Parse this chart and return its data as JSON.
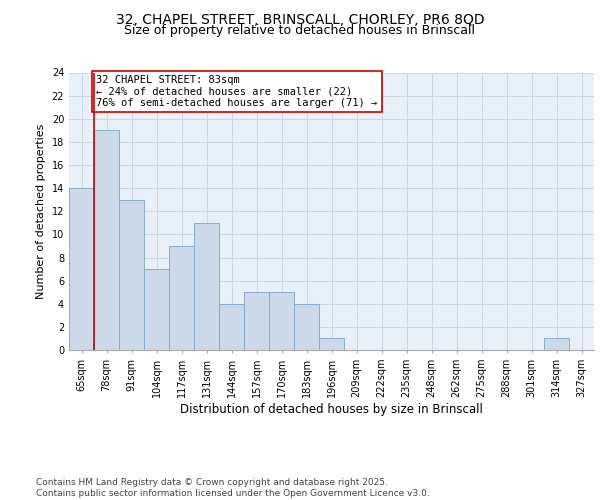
{
  "title1": "32, CHAPEL STREET, BRINSCALL, CHORLEY, PR6 8QD",
  "title2": "Size of property relative to detached houses in Brinscall",
  "xlabel": "Distribution of detached houses by size in Brinscall",
  "ylabel": "Number of detached properties",
  "categories": [
    "65sqm",
    "78sqm",
    "91sqm",
    "104sqm",
    "117sqm",
    "131sqm",
    "144sqm",
    "157sqm",
    "170sqm",
    "183sqm",
    "196sqm",
    "209sqm",
    "222sqm",
    "235sqm",
    "248sqm",
    "262sqm",
    "275sqm",
    "288sqm",
    "301sqm",
    "314sqm",
    "327sqm"
  ],
  "values": [
    14,
    19,
    13,
    7,
    9,
    11,
    4,
    5,
    5,
    4,
    1,
    0,
    0,
    0,
    0,
    0,
    0,
    0,
    0,
    1,
    0
  ],
  "bar_color": "#ccd9e8",
  "bar_edge_color": "#7da7c4",
  "ref_line_color": "#cc0000",
  "annotation_text": "32 CHAPEL STREET: 83sqm\n← 24% of detached houses are smaller (22)\n76% of semi-detached houses are larger (71) →",
  "annotation_box_color": "#ffffff",
  "annotation_box_edge": "#cc0000",
  "ylim": [
    0,
    24
  ],
  "yticks": [
    0,
    2,
    4,
    6,
    8,
    10,
    12,
    14,
    16,
    18,
    20,
    22,
    24
  ],
  "grid_color": "#c8d8e8",
  "bg_color": "#e8f0f8",
  "footer": "Contains HM Land Registry data © Crown copyright and database right 2025.\nContains public sector information licensed under the Open Government Licence v3.0.",
  "title1_fontsize": 10,
  "title2_fontsize": 9,
  "xlabel_fontsize": 8.5,
  "ylabel_fontsize": 8,
  "tick_fontsize": 7,
  "annotation_fontsize": 7.5,
  "footer_fontsize": 6.5
}
